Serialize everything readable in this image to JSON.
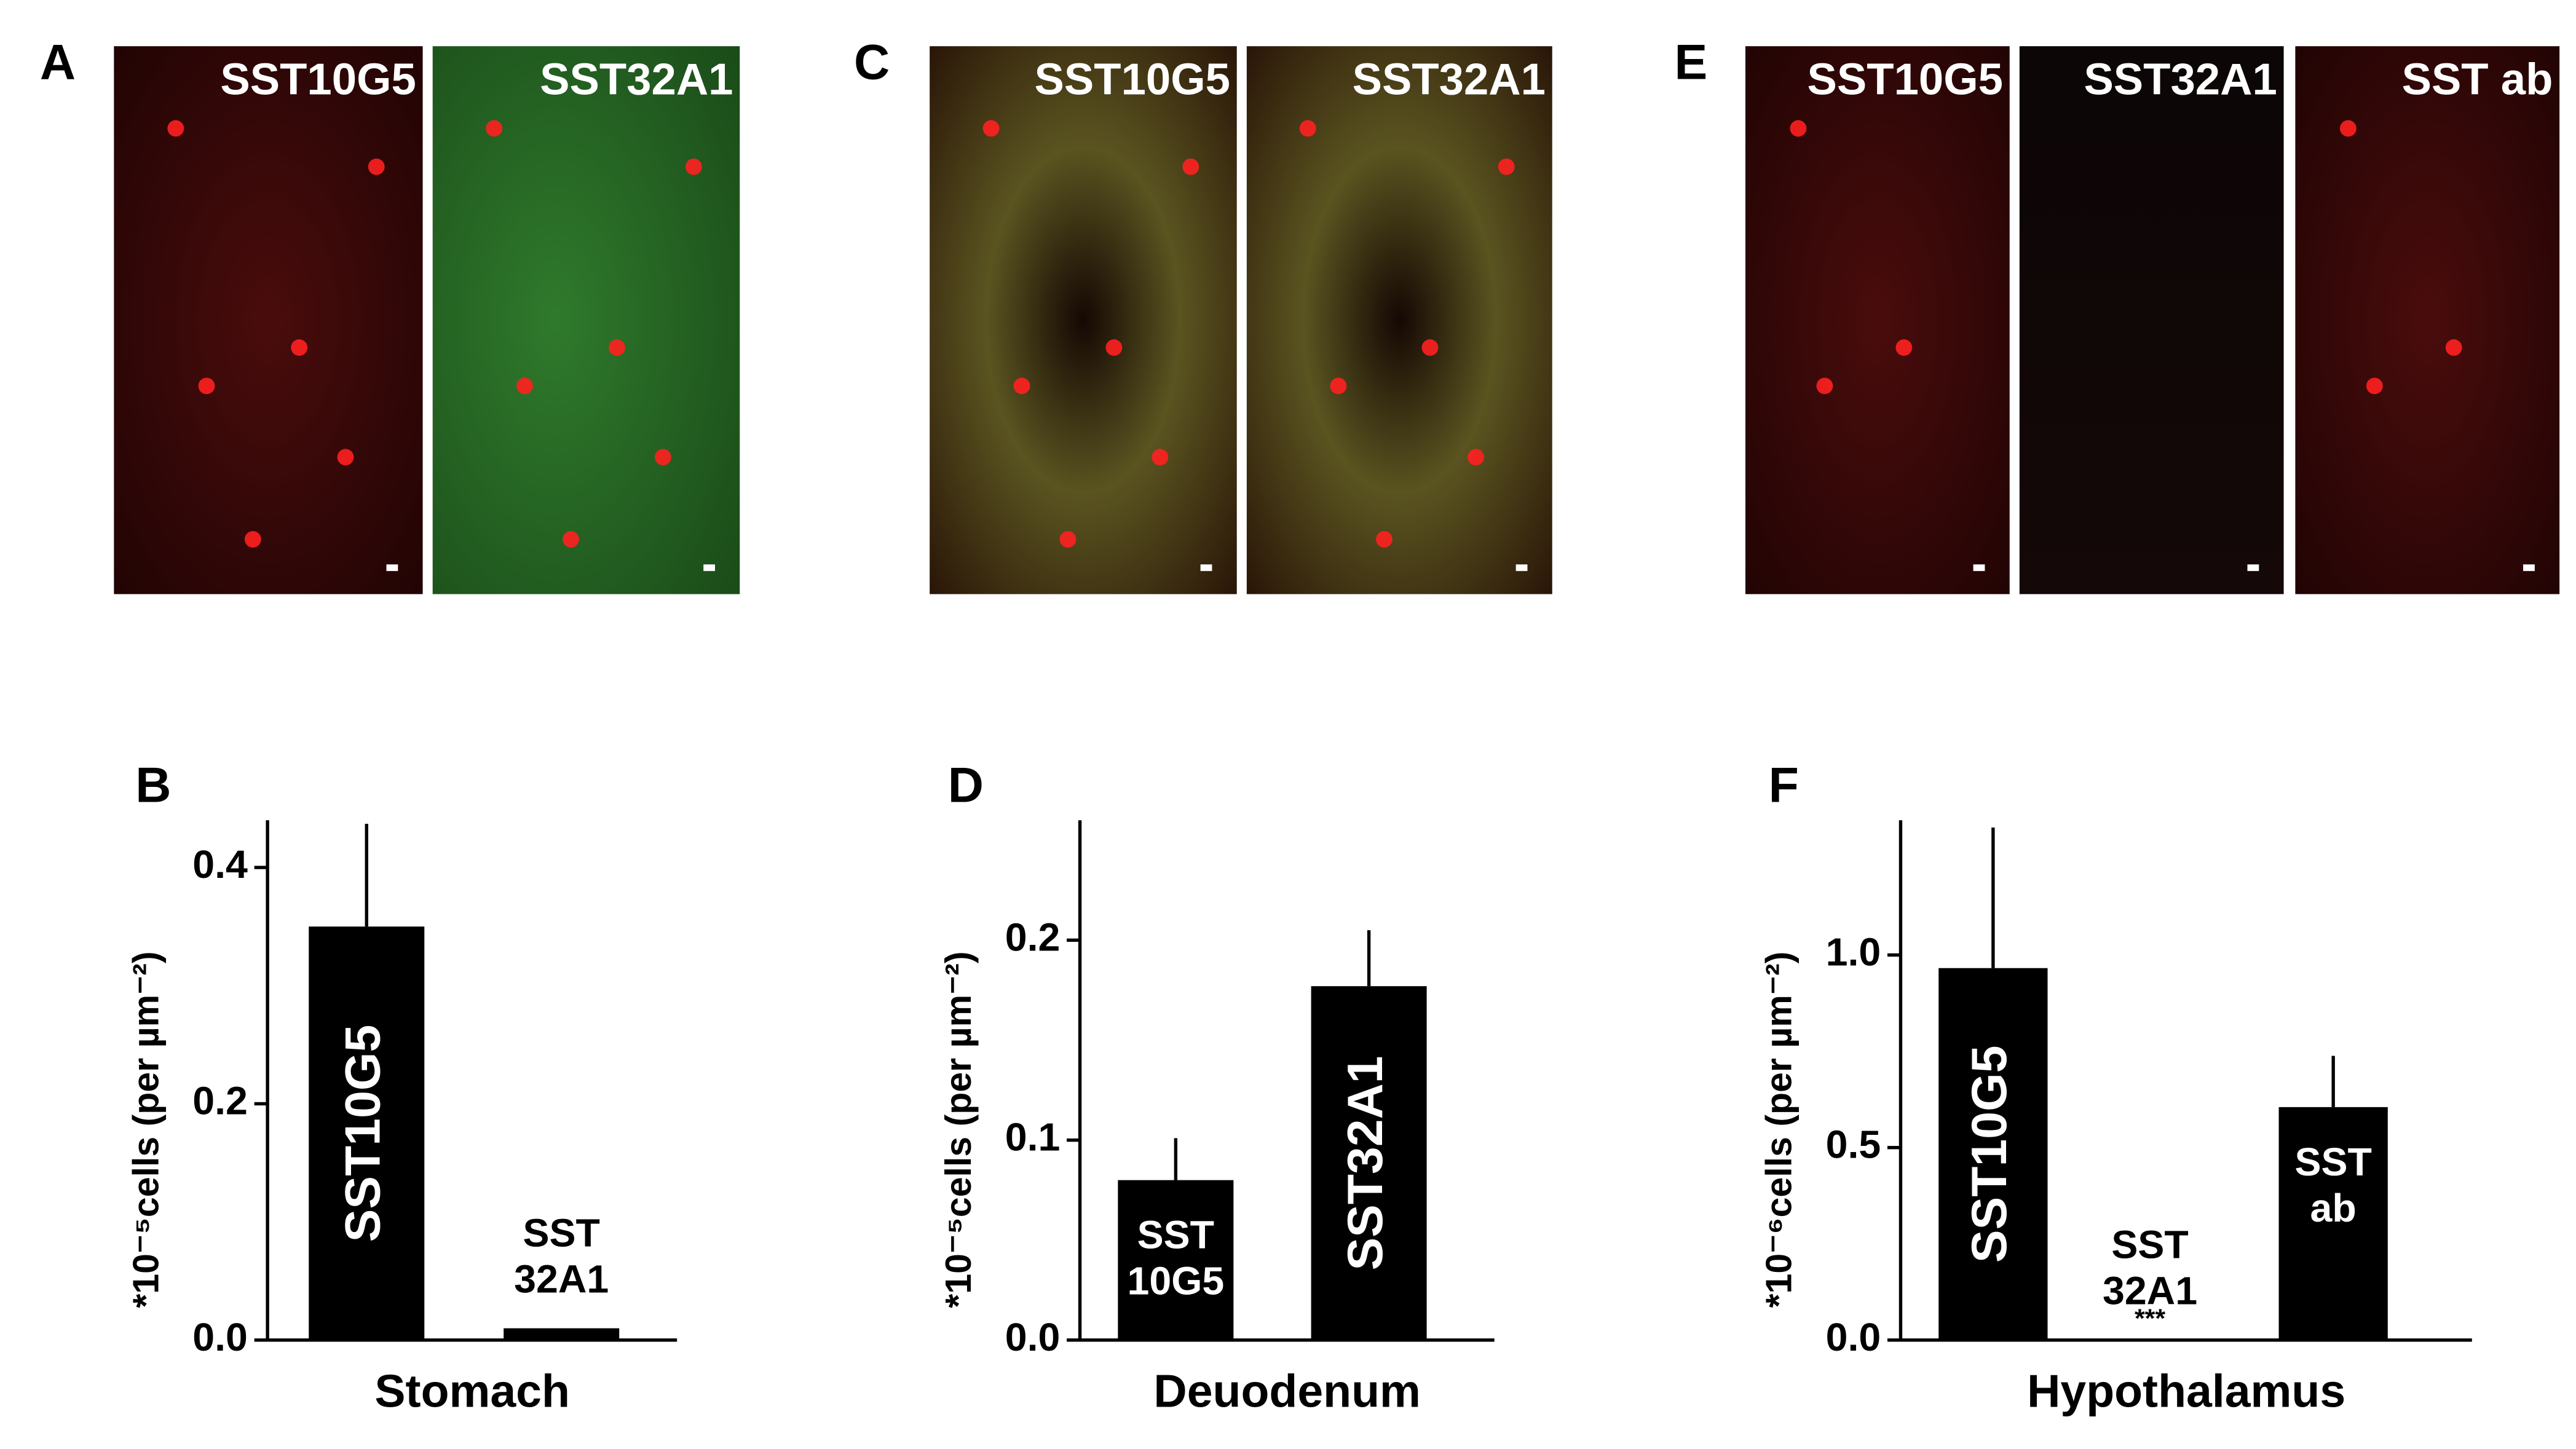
{
  "micrographs": [
    {
      "panel": "A",
      "images": [
        "SST10G5",
        "SST32A1"
      ]
    },
    {
      "panel": "C",
      "images": [
        "SST10G5",
        "SST32A1"
      ]
    },
    {
      "panel": "E",
      "images": [
        "SST10G5",
        "SST32A1",
        "SST ab"
      ]
    }
  ],
  "chart_data": [
    {
      "type": "bar",
      "panel": "B",
      "ylabel": "*10⁻⁵cells (per µm⁻²)",
      "xlabel": "Stomach",
      "categories": [
        "SST10G5",
        "SST 32A1"
      ],
      "values": [
        0.35,
        0.01
      ],
      "errors": [
        0.087,
        null
      ],
      "color": "#000000",
      "ylim": [
        0,
        0.44
      ],
      "yticks": [
        {
          "value": 0,
          "label": "0.0"
        },
        {
          "value": 0.2,
          "label": "0.2"
        },
        {
          "value": 0.4,
          "label": "0.4"
        }
      ]
    },
    {
      "type": "bar",
      "panel": "D",
      "ylabel": "*10⁻⁵cells (per µm⁻²)",
      "xlabel": "Deuodenum",
      "categories": [
        "SST 10G5",
        "SST32A1"
      ],
      "values": [
        0.08,
        0.177
      ],
      "errors": [
        0.021,
        0.028
      ],
      "color": "#000000",
      "ylim": [
        0,
        0.26
      ],
      "yticks": [
        {
          "value": 0,
          "label": "0.0"
        },
        0.1,
        0.2
      ]
    },
    {
      "type": "bar",
      "panel": "F",
      "ylabel": "*10⁻⁶cells (per µm⁻²)",
      "xlabel": "Hypothalamus",
      "categories": [
        "SST10G5",
        "SST 32A1",
        "SST ab"
      ],
      "values": [
        0.966,
        0,
        0.605
      ],
      "errors": [
        0.365,
        null,
        0.133
      ],
      "color": "#000000",
      "ylim": [
        0,
        1.35
      ],
      "yticks": [
        {
          "value": 0,
          "label": "0.0"
        },
        0.5,
        {
          "value": 1,
          "label": "1.0"
        }
      ],
      "annotations": [
        {
          "category": "SST 32A1",
          "text": "***"
        }
      ]
    }
  ]
}
